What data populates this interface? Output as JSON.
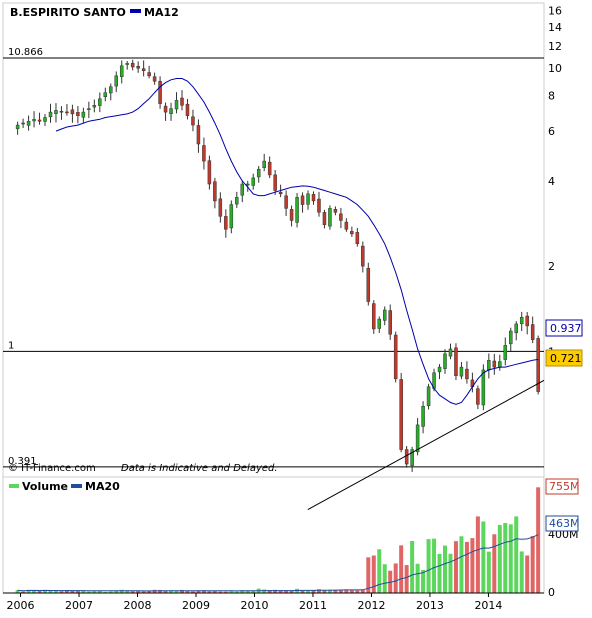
{
  "colors": {
    "up": "#27ae27",
    "down": "#c0392b",
    "ma_line": "#0000aa",
    "volume_up": "#5cd65c",
    "volume_down": "#e06666",
    "vol_ma": "#1f4e9a",
    "price_badge": "#ffcc00",
    "grid": "#000000"
  },
  "price_panel": {
    "legend": {
      "ticker": "B.ESPIRITO SANTO",
      "ma_label": "MA12"
    },
    "y_ticks": [
      "16",
      "14",
      "12",
      "10",
      "8",
      "6",
      "4",
      "2",
      "1"
    ],
    "ref_lines": [
      {
        "label": "10.866",
        "value": 10.866
      },
      {
        "label": "1",
        "value": 1
      },
      {
        "label": "0.391",
        "value": 0.391
      }
    ],
    "badges": {
      "ma_value": "0.937",
      "last_price": "0.721"
    },
    "footer": {
      "brand": "© IT-Finance.com",
      "disclaimer": "Data is Indicative and Delayed."
    },
    "scale": "log",
    "ylim": [
      0.36,
      17
    ]
  },
  "volume_panel": {
    "legend": {
      "volume_label": "Volume",
      "ma_label": "MA20"
    },
    "badges": {
      "last_volume": "755M",
      "ma_value": "463M",
      "hidden_tick": "400M"
    },
    "baseline_label": "0",
    "max_value": 800
  },
  "x_axis": {
    "labels": [
      "2006",
      "2007",
      "2008",
      "2009",
      "2010",
      "2011",
      "2012",
      "2013",
      "2014"
    ]
  },
  "chart_data": {
    "type": "candlestick",
    "title": "B.ESPIRITO SANTO",
    "period": "monthly",
    "series": [
      {
        "name": "B.ESPIRITO SANTO"
      },
      {
        "name": "MA12"
      },
      {
        "name": "Volume"
      },
      {
        "name": "MA20"
      }
    ],
    "trendline": {
      "from": [
        2012.45,
        0.395
      ],
      "to": [
        2014.9,
        0.82
      ]
    },
    "x_range": [
      2005.7,
      2014.95
    ],
    "close": [
      6.3,
      6.4,
      6.5,
      6.6,
      6.5,
      6.7,
      7.0,
      7.1,
      7.0,
      7.0,
      6.9,
      6.8,
      7.0,
      7.2,
      7.4,
      7.8,
      8.2,
      8.6,
      9.4,
      10.2,
      10.4,
      10.1,
      10.0,
      9.8,
      9.4,
      9.0,
      7.5,
      7.0,
      7.2,
      7.7,
      7.4,
      6.8,
      6.3,
      5.4,
      4.7,
      3.9,
      3.4,
      3.0,
      2.7,
      3.3,
      3.5,
      3.9,
      3.9,
      4.1,
      4.4,
      4.7,
      4.2,
      3.7,
      3.6,
      3.2,
      2.9,
      3.5,
      3.3,
      3.6,
      3.4,
      3.1,
      2.8,
      3.2,
      3.1,
      2.9,
      2.7,
      2.6,
      2.4,
      2.0,
      1.5,
      1.2,
      1.3,
      1.4,
      1.15,
      0.8,
      0.45,
      0.4,
      0.45,
      0.55,
      0.64,
      0.75,
      0.84,
      0.88,
      0.98,
      1.02,
      0.82,
      0.88,
      0.8,
      0.75,
      0.65,
      0.86,
      0.93,
      0.88,
      0.92,
      1.05,
      1.18,
      1.25,
      1.32,
      1.23,
      1.1,
      0.721
    ],
    "ma12": [
      6.0,
      6.1,
      6.2,
      6.25,
      6.3,
      6.4,
      6.5,
      6.55,
      6.6,
      6.7,
      6.75,
      6.8,
      6.85,
      6.9,
      7.0,
      7.2,
      7.5,
      7.8,
      8.2,
      8.6,
      8.9,
      9.1,
      9.2,
      9.2,
      9.0,
      8.6,
      8.1,
      7.6,
      7.0,
      6.4,
      5.8,
      5.2,
      4.7,
      4.3,
      4.0,
      3.8,
      3.6,
      3.55,
      3.55,
      3.6,
      3.65,
      3.7,
      3.75,
      3.8,
      3.82,
      3.84,
      3.83,
      3.8,
      3.75,
      3.7,
      3.65,
      3.6,
      3.55,
      3.5,
      3.4,
      3.3,
      3.15,
      3.0,
      2.8,
      2.6,
      2.4,
      2.15,
      1.9,
      1.65,
      1.4,
      1.2,
      1.02,
      0.9,
      0.8,
      0.74,
      0.7,
      0.68,
      0.66,
      0.65,
      0.66,
      0.7,
      0.75,
      0.8,
      0.84,
      0.86,
      0.87,
      0.88,
      0.88,
      0.89,
      0.9,
      0.91,
      0.92,
      0.93,
      0.937
    ]
  }
}
